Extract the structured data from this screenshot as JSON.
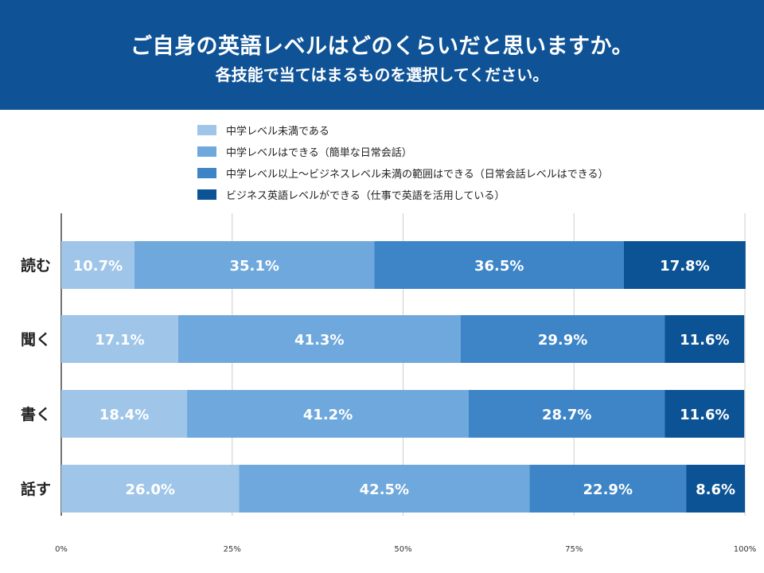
{
  "header": {
    "title": "ご自身の英語レベルはどのくらいだと思いますか。",
    "subtitle": "各技能で当てはまるものを選択してください。"
  },
  "colors": {
    "header_bg": "#0f5396",
    "gridline": "#cccccc",
    "axis": "#444444"
  },
  "chart_data": {
    "type": "bar",
    "orientation": "horizontal",
    "stacked": true,
    "percent_stacked": true,
    "categories": [
      "読む",
      "聞く",
      "書く",
      "話す"
    ],
    "series": [
      {
        "name": "中学レベル未満である",
        "color": "#9fc5e8",
        "values": [
          10.7,
          17.1,
          18.4,
          26.0
        ],
        "labels": [
          "10.7%",
          "17.1%",
          "18.4%",
          "26.0%"
        ]
      },
      {
        "name": "中学レベルはできる（簡単な日常会話）",
        "color": "#6fa8dc",
        "values": [
          35.1,
          41.3,
          41.2,
          42.5
        ],
        "labels": [
          "35.1%",
          "41.3%",
          "41.2%",
          "42.5%"
        ]
      },
      {
        "name": "中学レベル以上〜ビジネスレベル未満の範囲はできる（日常会話レベルはできる）",
        "color": "#3d85c6",
        "values": [
          36.5,
          29.9,
          28.7,
          22.9
        ],
        "labels": [
          "36.5%",
          "29.9%",
          "28.7%",
          "22.9%"
        ]
      },
      {
        "name": "ビジネス英語レベルができる（仕事で英語を活用している）",
        "color": "#0b5394",
        "values": [
          17.8,
          11.6,
          11.6,
          8.6
        ],
        "labels": [
          "17.8%",
          "11.6%",
          "11.6%",
          "8.6%"
        ]
      }
    ],
    "xlim": [
      0,
      100
    ],
    "x_ticks": [
      0,
      25,
      50,
      75,
      100
    ],
    "x_tick_labels": [
      "0%",
      "25%",
      "50%",
      "75%",
      "100%"
    ],
    "grid": true,
    "legend_position": "top"
  }
}
